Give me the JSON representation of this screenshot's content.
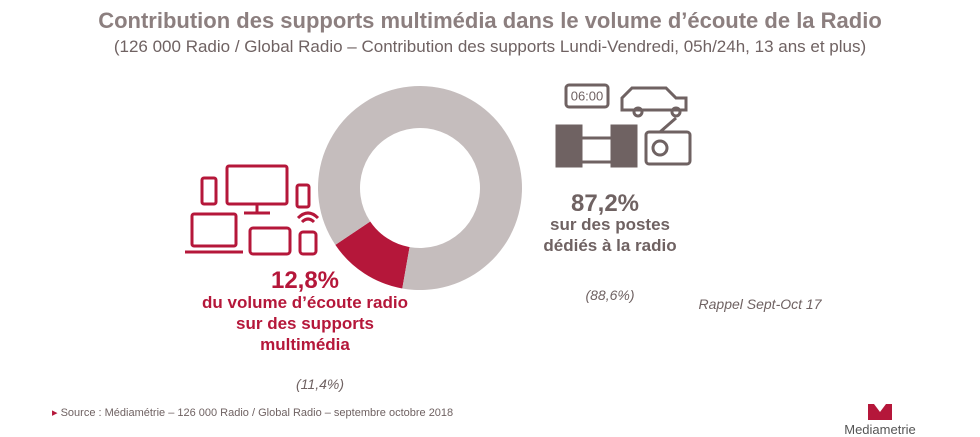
{
  "chart_data": {
    "type": "donut",
    "title": "Contribution des supports multimédia dans le volume d’écoute de la Radio",
    "subtitle": "(126 000 Radio / Global Radio – Contribution des supports Lundi-Vendredi, 05h/24h, 13 ans et plus)",
    "categories": [
      "du volume d’écoute radio sur des supports multimédia",
      "sur des postes dédiés à la radio"
    ],
    "values": [
      12.8,
      87.2
    ],
    "value_labels": [
      "12,8%",
      "87,2%"
    ],
    "colors": [
      "#b5173a",
      "#c5bdbd"
    ],
    "recall": {
      "label": "Rappel Sept-Oct 17",
      "values": [
        11.4,
        88.6
      ],
      "value_labels": [
        "(11,4%)",
        "(88,6%)"
      ]
    },
    "source": "Source : Médiamétrie – 126 000 Radio / Global Radio – septembre octobre 2018",
    "logo": "Mediametrie"
  }
}
